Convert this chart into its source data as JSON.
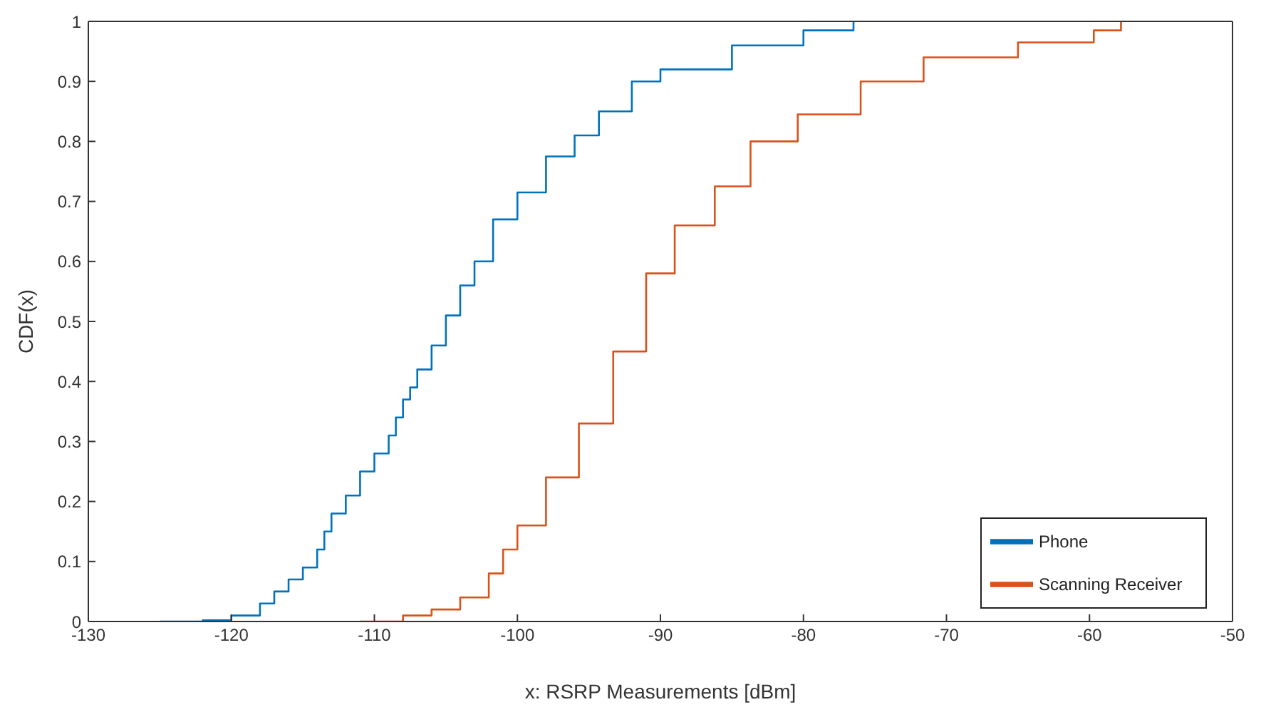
{
  "chart_data": {
    "type": "step",
    "xlabel": "x: RSRP Measurements [dBm]",
    "ylabel": "CDF(x)",
    "xlim": [
      -130,
      -50
    ],
    "xticks": [
      -130,
      -120,
      -110,
      -100,
      -90,
      -80,
      -70,
      -60,
      -50
    ],
    "ylim": [
      0,
      1
    ],
    "yticks": [
      0,
      0.1,
      0.2,
      0.3,
      0.4,
      0.5,
      0.6,
      0.7,
      0.8,
      0.9,
      1
    ],
    "grid": false,
    "legend": "bottom right",
    "line_style": "solid",
    "marker": "none",
    "series": [
      {
        "name": "Phone",
        "color": "#0072bd",
        "x": [
          -125,
          -122,
          -120,
          -118,
          -117,
          -116,
          -115,
          -114,
          -113.5,
          -113,
          -112,
          -111,
          -110,
          -109,
          -108.5,
          -108,
          -107.5,
          -107,
          -106,
          -105,
          -104,
          -103,
          -101.7,
          -100,
          -98,
          -96,
          -94.3,
          -92,
          -90,
          -85,
          -80,
          -76.5
        ],
        "values": [
          0,
          0.002,
          0.01,
          0.03,
          0.05,
          0.07,
          0.09,
          0.12,
          0.15,
          0.18,
          0.21,
          0.25,
          0.28,
          0.31,
          0.34,
          0.37,
          0.39,
          0.42,
          0.46,
          0.51,
          0.56,
          0.6,
          0.67,
          0.715,
          0.775,
          0.81,
          0.85,
          0.9,
          0.92,
          0.96,
          0.985,
          1
        ]
      },
      {
        "name": "Scanning Receiver",
        "color": "#d95319",
        "x": [
          -111,
          -108,
          -106,
          -104,
          -102,
          -101,
          -100,
          -98,
          -95.7,
          -93.3,
          -91,
          -89,
          -86.2,
          -83.7,
          -80.4,
          -76,
          -71.6,
          -65,
          -59.7,
          -57.8
        ],
        "values": [
          0,
          0.01,
          0.02,
          0.04,
          0.08,
          0.12,
          0.16,
          0.24,
          0.33,
          0.45,
          0.58,
          0.66,
          0.725,
          0.8,
          0.845,
          0.9,
          0.94,
          0.965,
          0.985,
          1
        ]
      }
    ]
  }
}
